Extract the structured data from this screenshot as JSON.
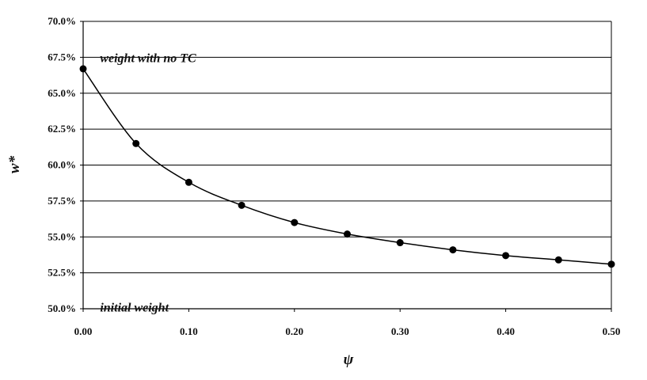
{
  "chart_data": {
    "type": "line",
    "title": "",
    "xlabel": "ψ",
    "ylabel": "w*",
    "xlim": [
      0.0,
      0.5
    ],
    "ylim": [
      0.5,
      0.7
    ],
    "x_ticks": [
      "0.00",
      "0.10",
      "0.20",
      "0.30",
      "0.40",
      "0.50"
    ],
    "y_ticks": [
      "50.0%",
      "52.5%",
      "55.0%",
      "57.5%",
      "60.0%",
      "62.5%",
      "65.0%",
      "67.5%",
      "70.0%"
    ],
    "grid": "horizontal",
    "series": [
      {
        "x": [
          0.0,
          0.05,
          0.1,
          0.15,
          0.2,
          0.25,
          0.3,
          0.35,
          0.4,
          0.45,
          0.5
        ],
        "y": [
          0.667,
          0.615,
          0.588,
          0.572,
          0.56,
          0.552,
          0.546,
          0.541,
          0.537,
          0.534,
          0.531
        ]
      }
    ],
    "annotations": [
      {
        "text": "weight with no TC",
        "x": 0.01,
        "y": 0.675
      },
      {
        "text": "initial weight",
        "x": 0.01,
        "y": 0.5015
      }
    ]
  }
}
